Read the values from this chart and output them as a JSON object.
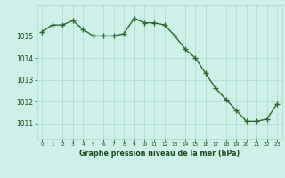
{
  "x": [
    0,
    1,
    2,
    3,
    4,
    5,
    6,
    7,
    8,
    9,
    10,
    11,
    12,
    13,
    14,
    15,
    16,
    17,
    18,
    19,
    20,
    21,
    22,
    23
  ],
  "y": [
    1015.2,
    1015.5,
    1015.5,
    1015.7,
    1015.3,
    1015.0,
    1015.0,
    1015.0,
    1015.1,
    1015.8,
    1015.6,
    1015.6,
    1015.5,
    1015.0,
    1014.4,
    1014.0,
    1013.3,
    1012.6,
    1012.1,
    1011.6,
    1011.1,
    1011.1,
    1011.2,
    1011.9
  ],
  "line_color": "#2d6a2d",
  "marker_color": "#2d6a2d",
  "bg_color": "#cef0e8",
  "grid_color": "#a8d8cc",
  "xlabel": "Graphe pression niveau de la mer (hPa)",
  "xlabel_color": "#1a4a1a",
  "tick_color": "#1a4a1a",
  "ylim_min": 1010.3,
  "ylim_max": 1016.4,
  "yticks": [
    1011,
    1012,
    1013,
    1014,
    1015
  ],
  "xtick_labels": [
    "0",
    "1",
    "2",
    "3",
    "4",
    "5",
    "6",
    "7",
    "8",
    "9",
    "10",
    "11",
    "12",
    "13",
    "14",
    "15",
    "16",
    "17",
    "18",
    "19",
    "20",
    "21",
    "22",
    "23"
  ],
  "line_width": 1.0,
  "marker_size": 4
}
